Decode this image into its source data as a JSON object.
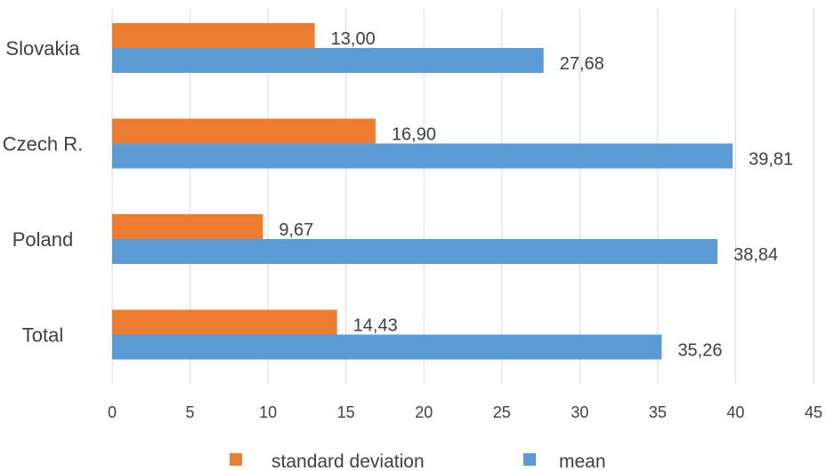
{
  "chart_data": {
    "type": "bar",
    "orientation": "horizontal",
    "categories": [
      "Slovakia",
      "Czech R.",
      "Poland",
      "Total"
    ],
    "series": [
      {
        "name": "standard deviation",
        "values": [
          13.0,
          16.9,
          9.67,
          14.43
        ],
        "labels": [
          "13,00",
          "16,90",
          "9,67",
          "14,43"
        ],
        "color": "#ED7D31"
      },
      {
        "name": "mean",
        "values": [
          27.68,
          39.81,
          38.84,
          35.26
        ],
        "labels": [
          "27,68",
          "39,81",
          "38,84",
          "35,26"
        ],
        "color": "#5B9BD5"
      }
    ],
    "xlim": [
      0,
      45
    ],
    "xticks": [
      0,
      5,
      10,
      15,
      20,
      25,
      30,
      35,
      40,
      45
    ],
    "grid": true,
    "legend_position": "bottom",
    "title": "",
    "xlabel": "",
    "ylabel": ""
  }
}
